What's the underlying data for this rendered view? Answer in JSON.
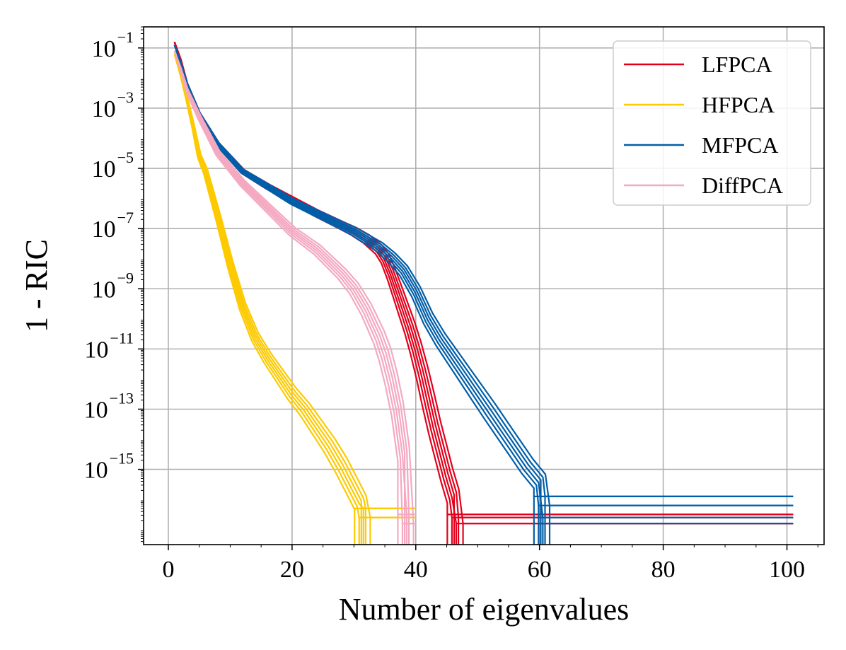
{
  "chart_data": {
    "type": "line",
    "title": "",
    "xlabel": "Number of eigenvalues",
    "ylabel": "1 - RIC",
    "yscale": "log",
    "xlim": [
      -4,
      106
    ],
    "ylim_log10": [
      -17.5,
      -0.3
    ],
    "xticks": [
      0,
      20,
      40,
      60,
      80,
      100
    ],
    "xtick_labels": [
      "0",
      "20",
      "40",
      "60",
      "80",
      "100"
    ],
    "yticks_log10": [
      -1,
      -3,
      -5,
      -7,
      -9,
      -11,
      -13,
      -15
    ],
    "ytick_labels": [
      {
        "base": "10",
        "exp": "−1"
      },
      {
        "base": "10",
        "exp": "−3"
      },
      {
        "base": "10",
        "exp": "−5"
      },
      {
        "base": "10",
        "exp": "−7"
      },
      {
        "base": "10",
        "exp": "−9"
      },
      {
        "base": "10",
        "exp": "−11"
      },
      {
        "base": "10",
        "exp": "−13"
      },
      {
        "base": "10",
        "exp": "−15"
      }
    ],
    "grid": true,
    "legend_position": "top-right",
    "series": [
      {
        "name": "LFPCA",
        "color": "#e3001b",
        "runs": 6,
        "x": [
          1,
          2,
          3,
          5,
          8,
          12,
          16,
          20,
          24,
          28,
          30,
          32,
          34,
          35,
          36,
          37,
          38,
          39,
          40,
          41,
          42,
          43,
          44,
          45,
          46
        ],
        "log10_y": [
          -0.8,
          -1.4,
          -2.2,
          -3.2,
          -4.2,
          -5.1,
          -5.6,
          -6.05,
          -6.5,
          -6.9,
          -7.1,
          -7.35,
          -7.7,
          -8.0,
          -8.5,
          -9.1,
          -9.7,
          -10.3,
          -11.0,
          -11.8,
          -12.7,
          -13.6,
          -14.4,
          -15.2,
          -15.9
        ],
        "floor_log10": [
          -16.5,
          -16.6,
          -16.8
        ],
        "plateau_end_x": 101
      },
      {
        "name": "HFPCA",
        "color": "#fdca00",
        "runs": 6,
        "x": [
          1,
          2,
          3,
          4,
          5,
          6,
          8,
          10,
          12,
          14,
          16,
          18,
          20,
          22,
          24,
          26,
          28,
          29,
          30,
          31
        ],
        "log10_y": [
          -1.2,
          -1.9,
          -2.7,
          -3.6,
          -4.6,
          -5.1,
          -6.6,
          -8.2,
          -9.6,
          -10.6,
          -11.3,
          -11.9,
          -12.5,
          -13.0,
          -13.6,
          -14.2,
          -14.9,
          -15.3,
          -15.7,
          -16.1
        ],
        "floor_log10": [
          -16.3,
          -16.6
        ],
        "plateau_end_x": 40
      },
      {
        "name": "MFPCA",
        "color": "#005ea9",
        "runs": 6,
        "x": [
          1,
          2,
          3,
          5,
          8,
          12,
          16,
          20,
          24,
          28,
          30,
          32,
          34,
          36,
          38,
          40,
          42,
          44,
          46,
          48,
          50,
          52,
          54,
          56,
          58,
          60
        ],
        "log10_y": [
          -0.9,
          -1.5,
          -2.2,
          -3.2,
          -4.2,
          -5.1,
          -5.6,
          -6.1,
          -6.5,
          -6.9,
          -7.1,
          -7.35,
          -7.6,
          -7.95,
          -8.4,
          -9.1,
          -10.0,
          -10.7,
          -11.3,
          -11.9,
          -12.5,
          -13.1,
          -13.7,
          -14.3,
          -14.9,
          -15.4
        ],
        "floor_log10": [
          -15.9,
          -16.2,
          -16.6,
          -16.8
        ],
        "plateau_end_x": 101
      },
      {
        "name": "DiffPCA",
        "color": "#f4a9c1",
        "runs": 6,
        "x": [
          1,
          2,
          3,
          5,
          8,
          12,
          16,
          20,
          24,
          28,
          30,
          32,
          34,
          35,
          36,
          37,
          38
        ],
        "log10_y": [
          -1.1,
          -1.7,
          -2.4,
          -3.3,
          -4.5,
          -5.5,
          -6.3,
          -7.1,
          -7.7,
          -8.5,
          -9.0,
          -9.7,
          -10.6,
          -11.2,
          -12.0,
          -13.0,
          -14.5
        ],
        "floor_log10": [
          -16.5,
          -16.8
        ],
        "plateau_end_x": 40
      }
    ],
    "legend": [
      "LFPCA",
      "HFPCA",
      "MFPCA",
      "DiffPCA"
    ]
  }
}
